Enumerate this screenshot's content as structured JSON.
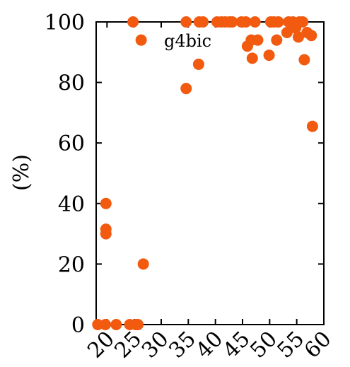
{
  "chart_data": {
    "type": "scatter",
    "title": "",
    "xlabel": "",
    "ylabel": "(%)",
    "annotation": "g4bic",
    "xlim": [
      18,
      60
    ],
    "ylim": [
      0,
      100
    ],
    "xticks": [
      20,
      25,
      30,
      35,
      40,
      45,
      50,
      55,
      60
    ],
    "yticks": [
      0,
      20,
      40,
      60,
      80,
      100
    ],
    "grid": false,
    "marker_color": "#f15a0f",
    "series": [
      {
        "points": [
          [
            18.3,
            0
          ],
          [
            19.7,
            0
          ],
          [
            21.7,
            0
          ],
          [
            24.2,
            0
          ],
          [
            25.3,
            0
          ],
          [
            25.7,
            0
          ],
          [
            19.8,
            40
          ],
          [
            19.8,
            31.5
          ],
          [
            19.8,
            30
          ],
          [
            24.8,
            100
          ],
          [
            26.3,
            94
          ],
          [
            26.7,
            20
          ],
          [
            34.6,
            78
          ],
          [
            34.6,
            100
          ],
          [
            36.9,
            86
          ],
          [
            37.0,
            100
          ],
          [
            37.7,
            100
          ],
          [
            40.3,
            100
          ],
          [
            41.1,
            100
          ],
          [
            41.8,
            100
          ],
          [
            42.6,
            100
          ],
          [
            43.1,
            100
          ],
          [
            44.8,
            100
          ],
          [
            45.6,
            100
          ],
          [
            45.9,
            92
          ],
          [
            46.6,
            94
          ],
          [
            46.8,
            88
          ],
          [
            47.3,
            100
          ],
          [
            47.8,
            94
          ],
          [
            49.9,
            89
          ],
          [
            50.2,
            100
          ],
          [
            50.8,
            100
          ],
          [
            51.3,
            94
          ],
          [
            51.6,
            100
          ],
          [
            53.2,
            96.5
          ],
          [
            53.5,
            100
          ],
          [
            54.3,
            100
          ],
          [
            54.8,
            98
          ],
          [
            55.3,
            95
          ],
          [
            55.5,
            100
          ],
          [
            56.1,
            100
          ],
          [
            56.4,
            87.5
          ],
          [
            56.9,
            96.5
          ],
          [
            57.7,
            95.5
          ],
          [
            57.9,
            65.5
          ]
        ]
      }
    ]
  }
}
